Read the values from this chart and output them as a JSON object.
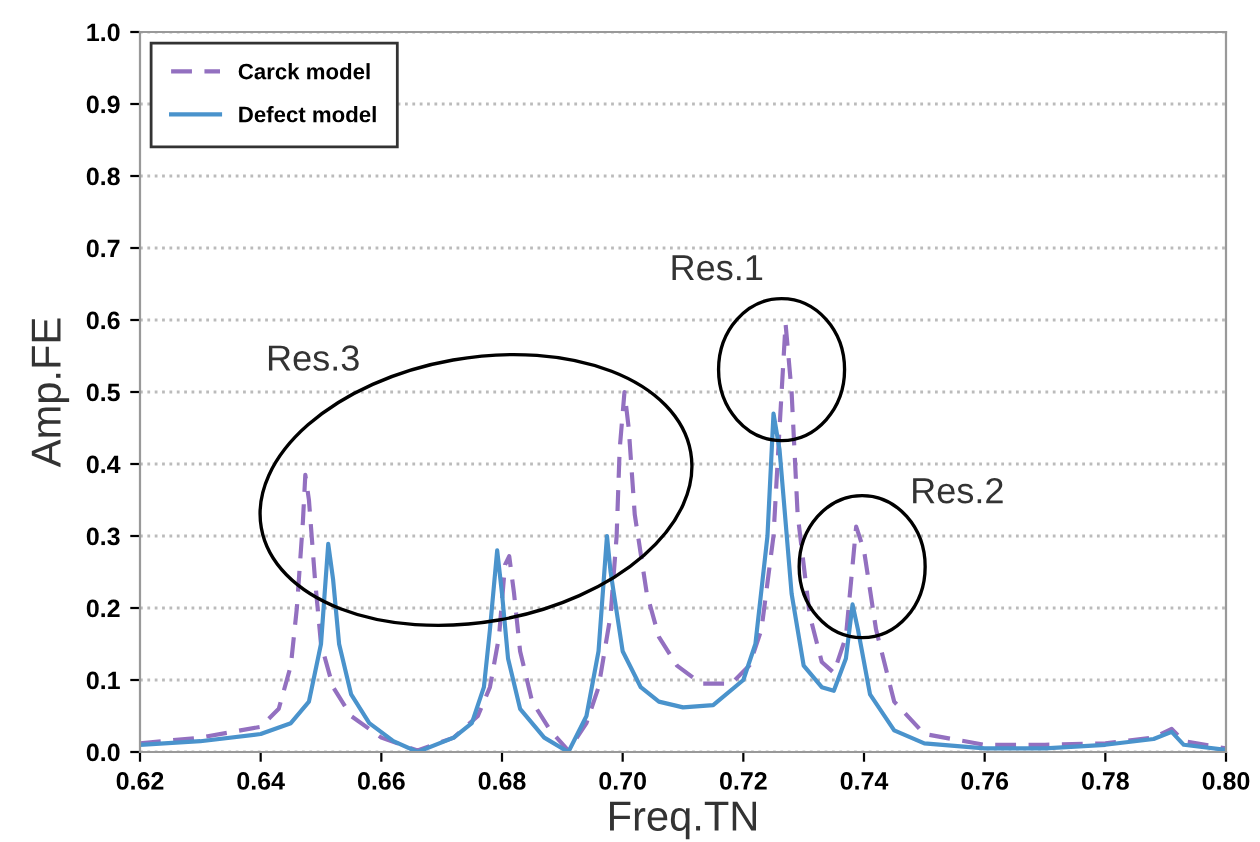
{
  "chart_data": {
    "type": "line",
    "xlabel": "Freq.TN",
    "ylabel": "Amp.FE",
    "xlim": [
      0.62,
      0.8
    ],
    "xticks": [
      0.62,
      0.64,
      0.66,
      0.68,
      {
        "value": 0.7,
        "label": "0.70"
      },
      0.72,
      0.74,
      0.76,
      0.78,
      {
        "value": 0.8,
        "label": "0.80"
      }
    ],
    "ylim": [
      0,
      1
    ],
    "yticks": [
      {
        "value": 0,
        "label": "0.0"
      },
      0.1,
      0.2,
      0.3,
      0.4,
      0.5,
      0.6,
      0.7,
      0.8,
      0.9,
      {
        "value": 1,
        "label": "1.0"
      }
    ],
    "grid": "y",
    "legend": "top left",
    "marker": "none",
    "series": [
      {
        "name": "Carck model",
        "color": "#9370c0",
        "line_style": "dashed",
        "x": [
          0.62,
          0.63,
          0.64,
          0.643,
          0.645,
          0.646,
          0.647,
          0.6474,
          0.648,
          0.649,
          0.65,
          0.652,
          0.655,
          0.66,
          0.666,
          0.672,
          0.676,
          0.678,
          0.6795,
          0.6805,
          0.6812,
          0.682,
          0.683,
          0.685,
          0.688,
          0.691,
          0.694,
          0.696,
          0.698,
          0.699,
          0.6995,
          0.7003,
          0.701,
          0.702,
          0.704,
          0.706,
          0.709,
          0.713,
          0.718,
          0.721,
          0.723,
          0.725,
          0.726,
          0.727,
          0.728,
          0.729,
          0.731,
          0.733,
          0.735,
          0.737,
          0.738,
          0.7387,
          0.74,
          0.742,
          0.745,
          0.75,
          0.76,
          0.77,
          0.78,
          0.788,
          0.791,
          0.793,
          0.8
        ],
        "values": [
          0.012,
          0.02,
          0.035,
          0.06,
          0.12,
          0.2,
          0.32,
          0.385,
          0.35,
          0.24,
          0.15,
          0.09,
          0.05,
          0.02,
          0.002,
          0.02,
          0.05,
          0.09,
          0.16,
          0.26,
          0.272,
          0.22,
          0.14,
          0.07,
          0.03,
          0.002,
          0.04,
          0.09,
          0.19,
          0.3,
          0.42,
          0.5,
          0.45,
          0.33,
          0.22,
          0.16,
          0.12,
          0.095,
          0.095,
          0.12,
          0.17,
          0.3,
          0.45,
          0.595,
          0.5,
          0.33,
          0.19,
          0.125,
          0.11,
          0.16,
          0.25,
          0.313,
          0.28,
          0.17,
          0.07,
          0.025,
          0.01,
          0.01,
          0.012,
          0.02,
          0.032,
          0.015,
          0.005
        ]
      },
      {
        "name": "Defect model",
        "color": "#4a93cc",
        "line_style": "solid",
        "x": [
          0.62,
          0.63,
          0.64,
          0.645,
          0.648,
          0.65,
          0.6512,
          0.652,
          0.653,
          0.655,
          0.658,
          0.662,
          0.666,
          0.672,
          0.675,
          0.677,
          0.678,
          0.6792,
          0.68,
          0.681,
          0.683,
          0.687,
          0.691,
          0.694,
          0.696,
          0.6974,
          0.698,
          0.7,
          0.703,
          0.706,
          0.71,
          0.715,
          0.72,
          0.722,
          0.724,
          0.725,
          0.726,
          0.728,
          0.73,
          0.733,
          0.735,
          0.737,
          0.7381,
          0.739,
          0.741,
          0.745,
          0.75,
          0.76,
          0.77,
          0.78,
          0.788,
          0.791,
          0.793,
          0.8
        ],
        "values": [
          0.01,
          0.015,
          0.025,
          0.04,
          0.07,
          0.15,
          0.289,
          0.24,
          0.15,
          0.08,
          0.04,
          0.015,
          0.0,
          0.02,
          0.04,
          0.09,
          0.17,
          0.28,
          0.22,
          0.13,
          0.06,
          0.02,
          0.0,
          0.05,
          0.14,
          0.3,
          0.25,
          0.14,
          0.09,
          0.07,
          0.062,
          0.065,
          0.1,
          0.15,
          0.3,
          0.47,
          0.42,
          0.22,
          0.12,
          0.09,
          0.085,
          0.13,
          0.205,
          0.17,
          0.08,
          0.03,
          0.012,
          0.005,
          0.005,
          0.01,
          0.018,
          0.028,
          0.01,
          0.003
        ]
      }
    ],
    "annotations": [
      {
        "text": "Res.1",
        "x": 0.727,
        "y": 0.595
      },
      {
        "text": "Res.2",
        "x": 0.7387,
        "y": 0.313
      },
      "Res.3"
    ]
  }
}
